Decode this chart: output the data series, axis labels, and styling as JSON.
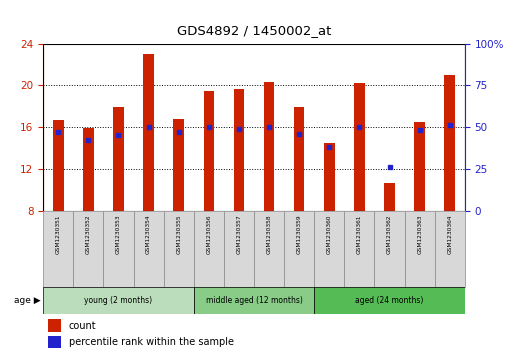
{
  "title": "GDS4892 / 1450002_at",
  "samples": [
    "GSM1230351",
    "GSM1230352",
    "GSM1230353",
    "GSM1230354",
    "GSM1230355",
    "GSM1230356",
    "GSM1230357",
    "GSM1230358",
    "GSM1230359",
    "GSM1230360",
    "GSM1230361",
    "GSM1230362",
    "GSM1230363",
    "GSM1230364"
  ],
  "count_values": [
    16.7,
    15.9,
    17.9,
    23.0,
    16.8,
    19.5,
    19.6,
    20.3,
    17.9,
    14.5,
    20.2,
    10.6,
    16.5,
    21.0
  ],
  "percentile_values": [
    47,
    42,
    45,
    50,
    47,
    50,
    49,
    50,
    46,
    38,
    50,
    26,
    48,
    51
  ],
  "ymin": 8,
  "ymax": 24,
  "yticks": [
    8,
    12,
    16,
    20,
    24
  ],
  "right_yticklabels": [
    "0",
    "25",
    "50",
    "75",
    "100%"
  ],
  "bar_color": "#cc2200",
  "percentile_color": "#2222cc",
  "bar_width": 0.35,
  "group_info": [
    {
      "label": "young (2 months)",
      "start": 0,
      "end": 5,
      "color": "#bbddbb"
    },
    {
      "label": "middle aged (12 months)",
      "start": 5,
      "end": 9,
      "color": "#88cc88"
    },
    {
      "label": "aged (24 months)",
      "start": 9,
      "end": 14,
      "color": "#55bb55"
    }
  ],
  "legend_count_label": "count",
  "legend_pct_label": "percentile rank within the sample"
}
